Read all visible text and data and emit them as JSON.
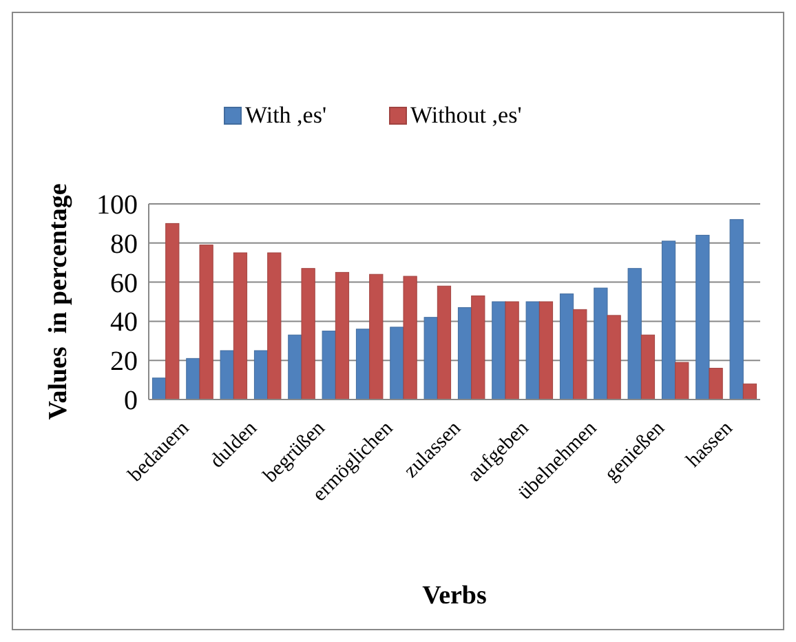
{
  "chart_data": {
    "type": "bar",
    "xlabel": "Verbs",
    "ylabel": "Values  in percentage",
    "categories": [
      "bedauern",
      null,
      "dulden",
      null,
      "begrüßen",
      null,
      "ermöglichen",
      null,
      "zulassen",
      null,
      "aufgeben",
      null,
      "übelnehmen",
      null,
      "genießen",
      null,
      "hassen",
      null
    ],
    "series": [
      {
        "name": "With ,es'",
        "color": "#4f81bd",
        "values": [
          11,
          21,
          25,
          25,
          33,
          35,
          36,
          37,
          42,
          47,
          50,
          50,
          54,
          57,
          67,
          81,
          84,
          92
        ]
      },
      {
        "name": "Without ,es'",
        "color": "#c0504d",
        "values": [
          90,
          79,
          75,
          75,
          67,
          65,
          64,
          63,
          58,
          53,
          50,
          50,
          46,
          43,
          33,
          19,
          16,
          8
        ]
      }
    ],
    "ylim": [
      0,
      100
    ],
    "yticks": [
      0,
      20,
      40,
      60,
      80,
      100
    ],
    "grid": "y",
    "legend": "top"
  }
}
